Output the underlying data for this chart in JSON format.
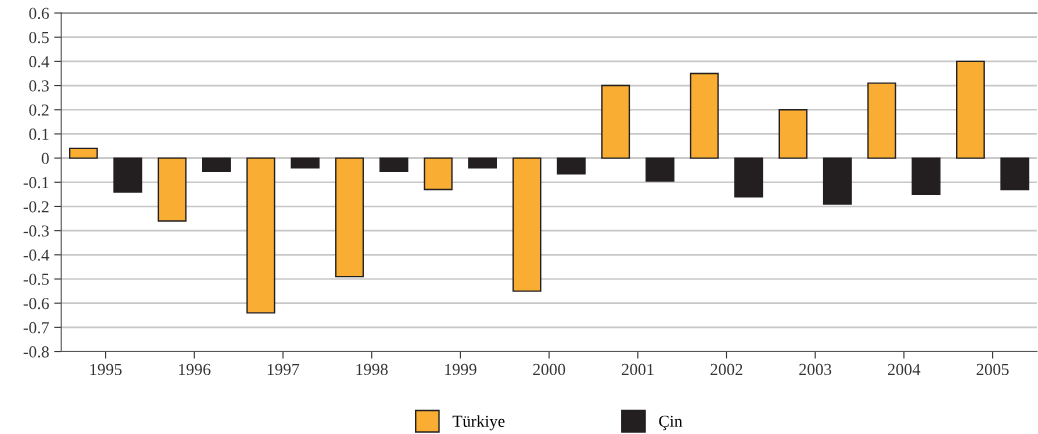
{
  "chart_data": {
    "type": "bar",
    "categories": [
      "1995",
      "1996",
      "1997",
      "1998",
      "1999",
      "2000",
      "2001",
      "2002",
      "2003",
      "2004",
      "2005"
    ],
    "series": [
      {
        "name": "Türkiye",
        "color": "#f9ae33",
        "values": [
          0.04,
          -0.26,
          -0.64,
          -0.49,
          -0.13,
          -0.55,
          0.3,
          0.35,
          0.2,
          0.31,
          0.4
        ]
      },
      {
        "name": "Çin",
        "color": "#231f20",
        "values": [
          -0.14,
          -0.055,
          -0.04,
          -0.055,
          -0.04,
          -0.065,
          -0.095,
          -0.16,
          -0.19,
          -0.15,
          -0.13
        ]
      }
    ],
    "ylim": [
      -0.8,
      0.6
    ],
    "yticks": [
      -0.8,
      -0.7,
      -0.6,
      -0.5,
      -0.4,
      -0.3,
      -0.2,
      -0.1,
      0,
      0.1,
      0.2,
      0.3,
      0.4,
      0.5,
      0.6
    ],
    "grid": "y",
    "legend": "bottom"
  }
}
